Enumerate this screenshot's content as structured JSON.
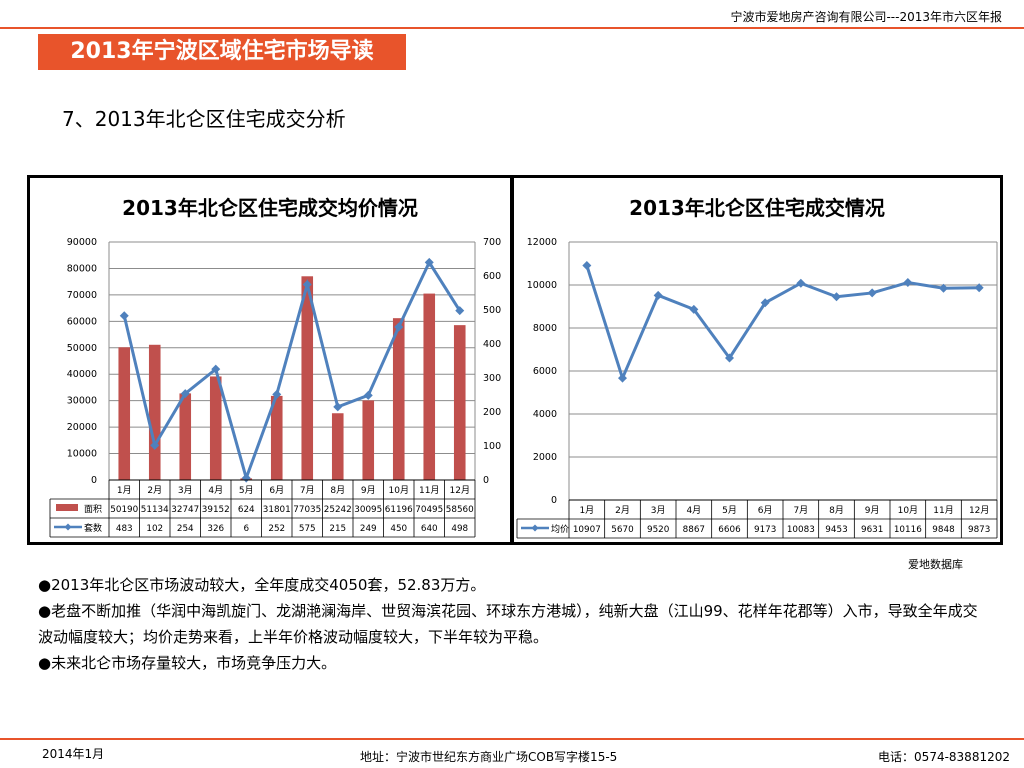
{
  "header": {
    "company": "宁波市爱地房产咨询有限公司---2013年市六区年报"
  },
  "banner": {
    "title": "2013年宁波区域住宅市场导读"
  },
  "section": {
    "title": "7、2013年北仑区住宅成交分析"
  },
  "colors": {
    "accent": "#e8542b",
    "bar": "#c0504d",
    "line": "#4f81bd",
    "grid": "#888888"
  },
  "chart_data": [
    {
      "type": "bar",
      "title": "2013年北仑区住宅成交均价情况",
      "categories": [
        "1月",
        "2月",
        "3月",
        "4月",
        "5月",
        "6月",
        "7月",
        "8月",
        "9月",
        "10月",
        "11月",
        "12月"
      ],
      "series": [
        {
          "name": "面积",
          "type": "bar",
          "axis": "left",
          "values": [
            50190,
            51134,
            32747,
            39152,
            624,
            31801,
            77035,
            25242,
            30095,
            61196,
            70495,
            58560
          ]
        },
        {
          "name": "套数",
          "type": "line",
          "axis": "right",
          "values": [
            483,
            102,
            254,
            326,
            6,
            252,
            575,
            215,
            249,
            450,
            640,
            498
          ]
        }
      ],
      "y_left": {
        "ylim": [
          0,
          90000
        ],
        "ticks": [
          0,
          10000,
          20000,
          30000,
          40000,
          50000,
          60000,
          70000,
          80000,
          90000
        ]
      },
      "y_right": {
        "ylim": [
          0,
          700
        ],
        "ticks": [
          0,
          100,
          200,
          300,
          400,
          500,
          600,
          700
        ]
      },
      "grid": true,
      "legend": "data-table-below"
    },
    {
      "type": "line",
      "title": "2013年北仑区住宅成交情况",
      "categories": [
        "1月",
        "2月",
        "3月",
        "4月",
        "5月",
        "6月",
        "7月",
        "8月",
        "9月",
        "10月",
        "11月",
        "12月"
      ],
      "series": [
        {
          "name": "均价",
          "values": [
            10907,
            5670,
            9520,
            8867,
            6606,
            9173,
            10083,
            9453,
            9631,
            10116,
            9848,
            9873
          ]
        }
      ],
      "y_left": {
        "ylim": [
          0,
          12000
        ],
        "ticks": [
          0,
          2000,
          4000,
          6000,
          8000,
          10000,
          12000
        ]
      },
      "grid": true,
      "legend": "data-table-below"
    }
  ],
  "source": "爱地数据库",
  "bullets": [
    "●2013年北仑区市场波动较大，全年度成交4050套，52.83万方。",
    "●老盘不断加推（华润中海凯旋门、龙湖滟澜海岸、世贸海滨花园、环球东方港城），纯新大盘（江山99、花样年花郡等）入市，导致全年成交波动幅度较大；均价走势来看，上半年价格波动幅度较大，下半年较为平稳。",
    "●未来北仑市场存量较大，市场竞争压力大。"
  ],
  "footer": {
    "date": "2014年1月",
    "address": "地址：宁波市世纪东方商业广场COB写字楼15-5",
    "phone": "电话：0574-83881202"
  }
}
